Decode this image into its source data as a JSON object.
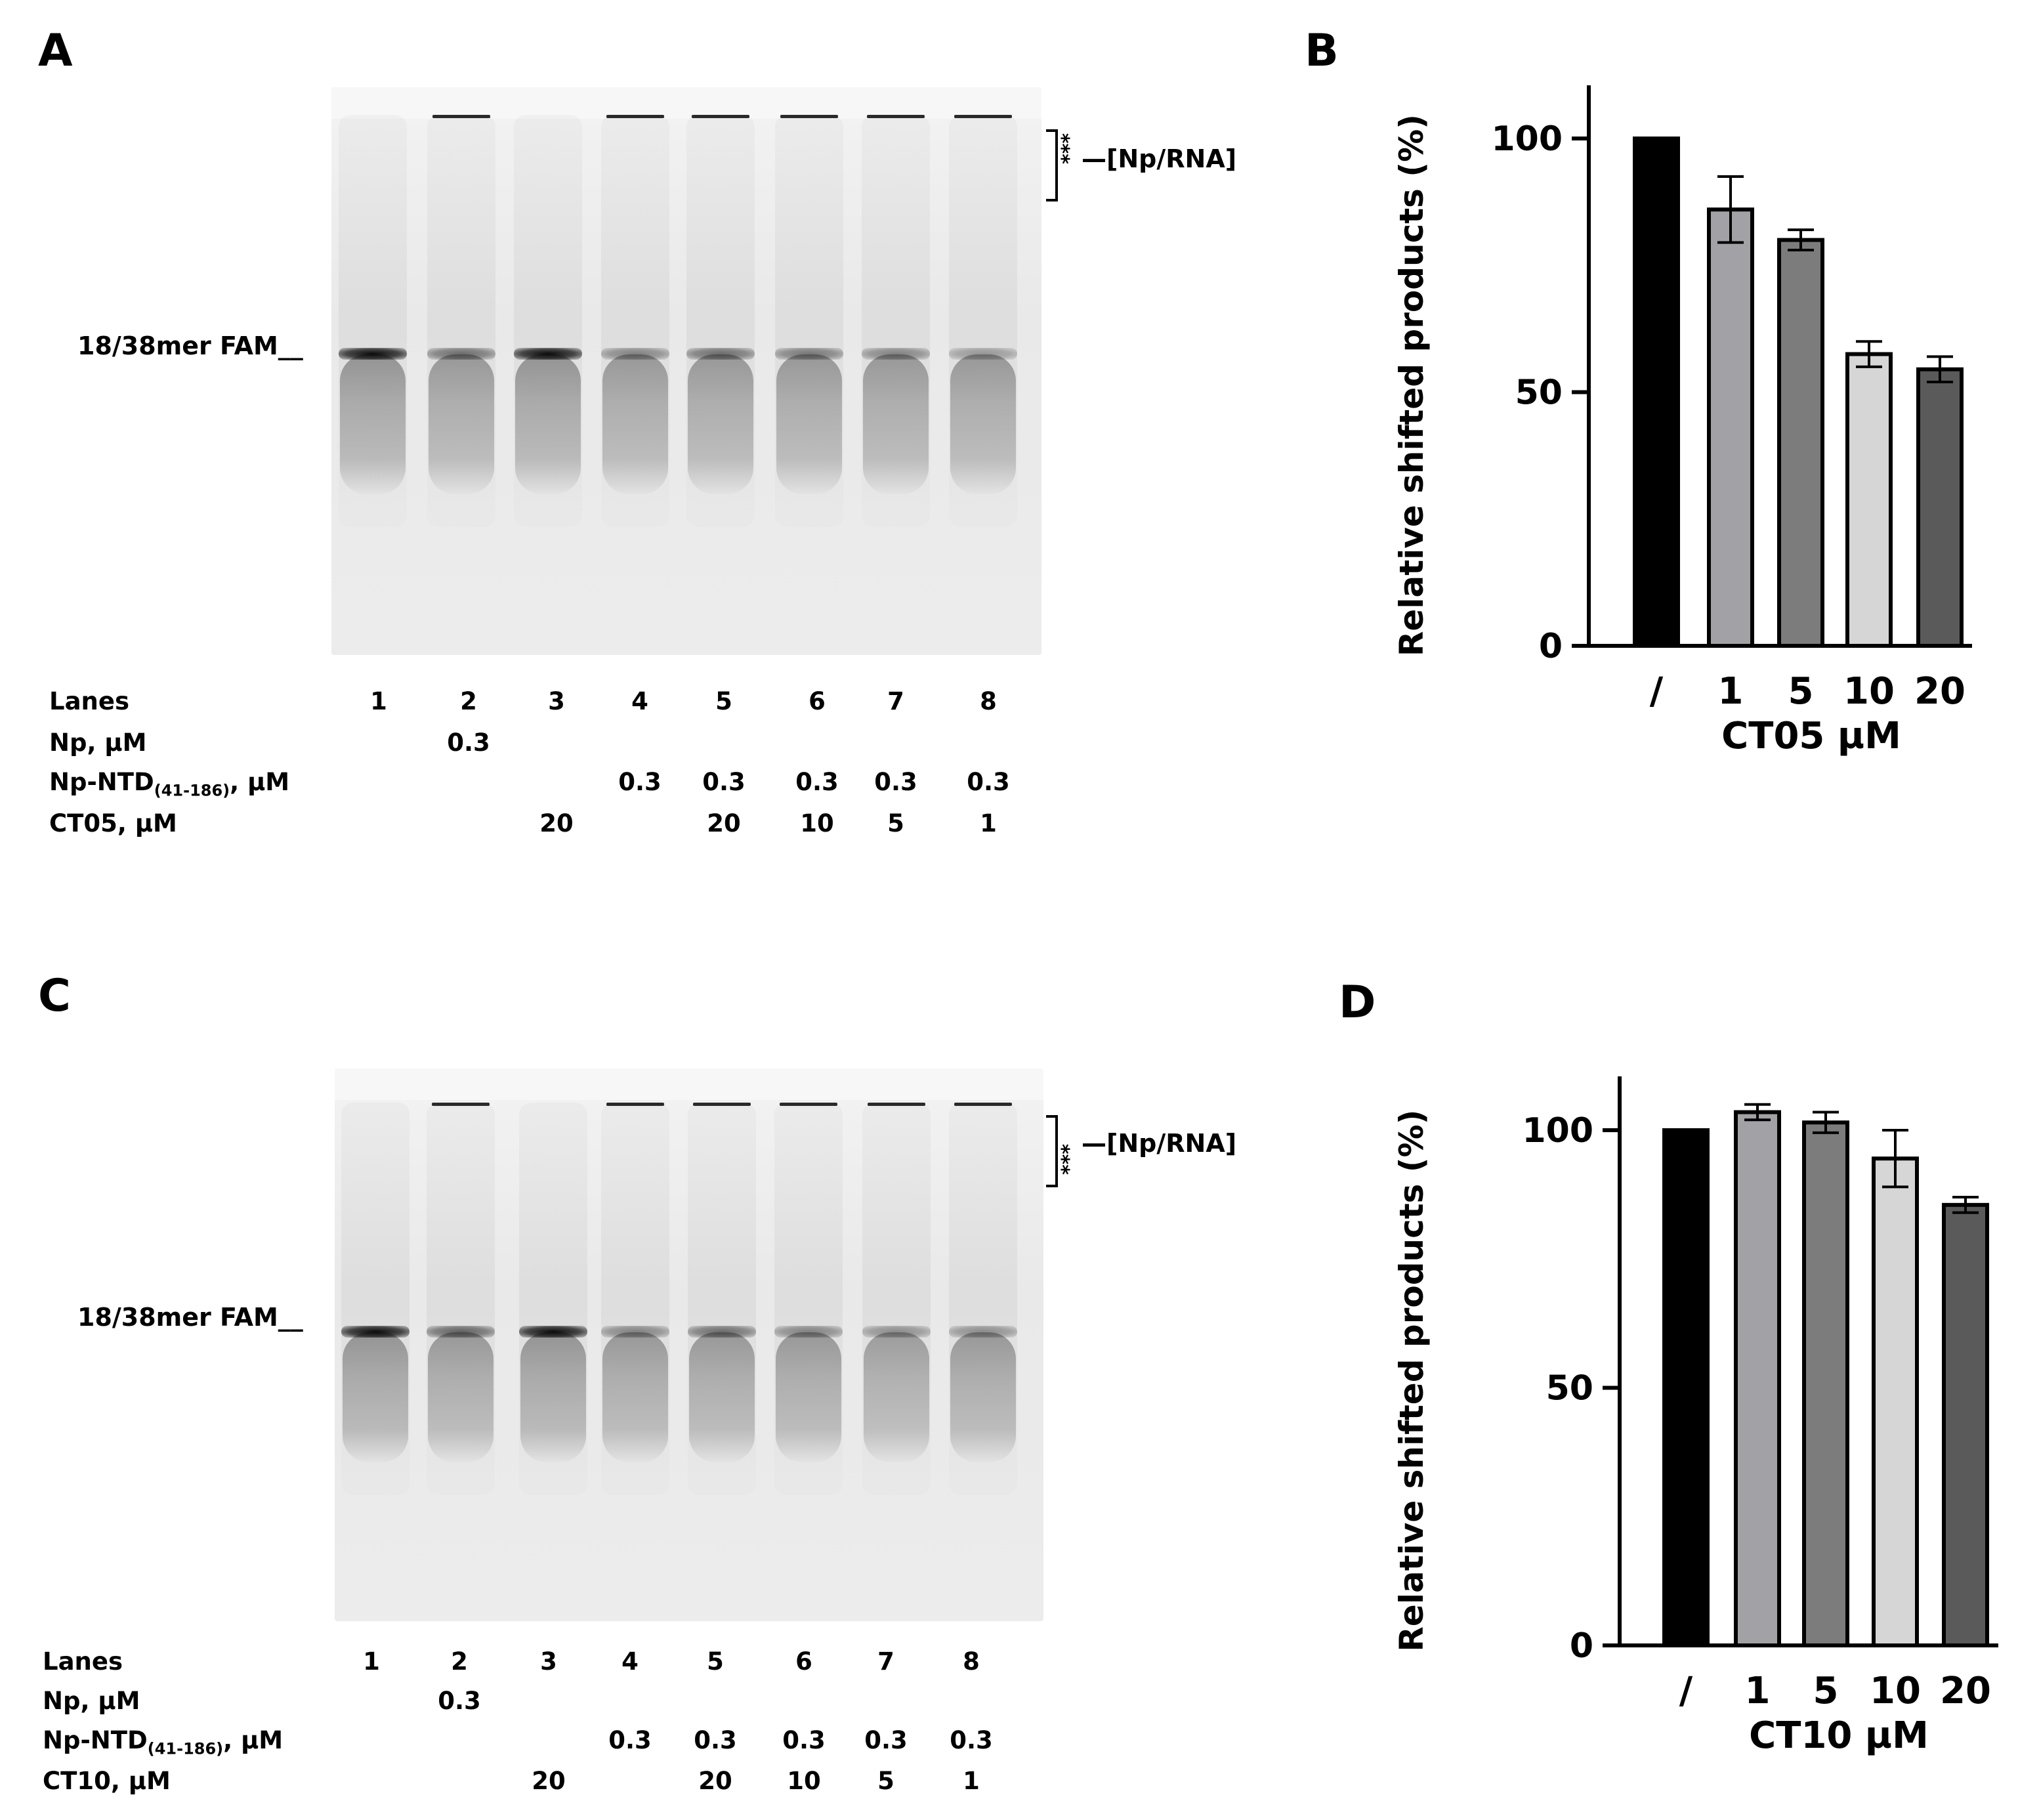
{
  "panels": {
    "A": "A",
    "B": "B",
    "C": "C",
    "D": "D"
  },
  "gels": [
    {
      "band_label": "18/38mer FAM__",
      "complex_label": "—[Np/RNA]",
      "stars": "***",
      "table": {
        "lanes_label": "Lanes",
        "lanes": [
          "1",
          "2",
          "3",
          "4",
          "5",
          "6",
          "7",
          "8"
        ],
        "rows": [
          {
            "label": "Np, µM",
            "values": [
              "",
              "0.3",
              "",
              "",
              "",
              "",
              "",
              ""
            ]
          },
          {
            "label": "Np-NTD",
            "subscript": "(41-186)",
            "suffix": ", µM",
            "values": [
              "",
              "",
              "",
              "0.3",
              "0.3",
              "0.3",
              "0.3",
              "0.3"
            ]
          },
          {
            "label": "CT05, µM",
            "values": [
              "",
              "",
              "20",
              "",
              "20",
              "10",
              "5",
              "1"
            ]
          }
        ]
      }
    },
    {
      "band_label": "18/38mer FAM__",
      "complex_label": "—[Np/RNA]",
      "stars": "***",
      "table": {
        "lanes_label": "Lanes",
        "lanes": [
          "1",
          "2",
          "3",
          "4",
          "5",
          "6",
          "7",
          "8"
        ],
        "rows": [
          {
            "label": "Np, µM",
            "values": [
              "",
              "0.3",
              "",
              "",
              "",
              "",
              "",
              ""
            ]
          },
          {
            "label": "Np-NTD",
            "subscript": "(41-186)",
            "suffix": ", µM",
            "values": [
              "",
              "",
              "",
              "0.3",
              "0.3",
              "0.3",
              "0.3",
              "0.3"
            ]
          },
          {
            "label": "CT10, µM",
            "values": [
              "",
              "",
              "20",
              "",
              "20",
              "10",
              "5",
              "1"
            ]
          }
        ]
      }
    }
  ],
  "chart_data": [
    {
      "type": "bar",
      "panel": "B",
      "categories": [
        "/",
        "1",
        "5",
        "10",
        "20"
      ],
      "values": [
        100,
        86,
        80,
        57.5,
        54.5
      ],
      "errors": [
        0,
        6.5,
        2,
        2.5,
        2.5
      ],
      "bar_colors": [
        "#000000",
        "#a2a2a6",
        "#7c7c7c",
        "#d6d6d6",
        "#5a5a5a"
      ],
      "ylabel": "Relative shifted products (%)",
      "xlabel": "CT05 µM",
      "yticks": [
        0,
        50,
        100
      ],
      "ylim": [
        0,
        110
      ]
    },
    {
      "type": "bar",
      "panel": "D",
      "categories": [
        "/",
        "1",
        "5",
        "10",
        "20"
      ],
      "values": [
        100,
        103.5,
        101.5,
        94.5,
        85.5
      ],
      "errors": [
        0,
        1.5,
        2,
        5.5,
        1.5
      ],
      "bar_colors": [
        "#000000",
        "#a2a2a6",
        "#7c7c7c",
        "#d6d6d6",
        "#5a5a5a"
      ],
      "ylabel": "Relative shifted products (%)",
      "xlabel": "CT10 µM",
      "yticks": [
        0,
        50,
        100
      ],
      "ylim": [
        0,
        110
      ]
    }
  ]
}
